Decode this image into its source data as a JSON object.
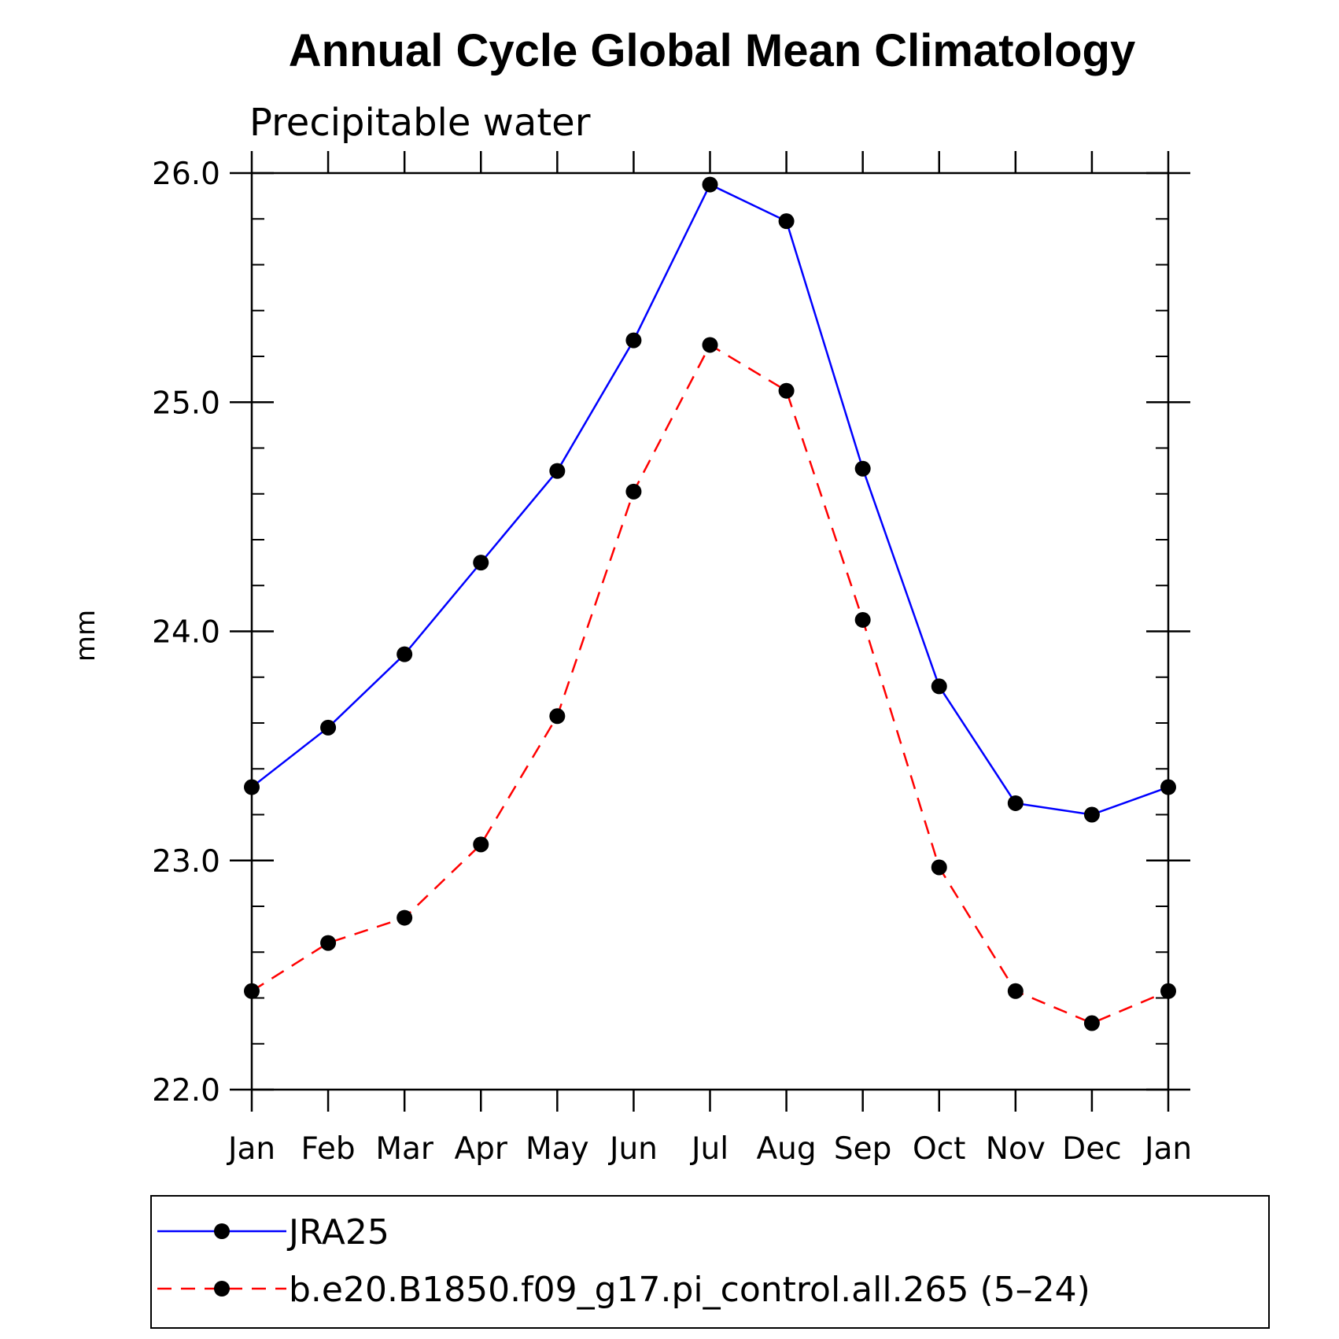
{
  "chart_data": {
    "type": "line",
    "title": "Annual Cycle Global Mean Climatology",
    "subtitle": "Precipitable water",
    "xlabel": "",
    "ylabel": "mm",
    "categories": [
      "Jan",
      "Feb",
      "Mar",
      "Apr",
      "May",
      "Jun",
      "Jul",
      "Aug",
      "Sep",
      "Oct",
      "Nov",
      "Dec",
      "Jan"
    ],
    "ylim": [
      22.0,
      26.0
    ],
    "yticks": [
      "22.0",
      "23.0",
      "24.0",
      "25.0",
      "26.0"
    ],
    "grid": false,
    "legend_position": "bottom",
    "series": [
      {
        "name": "JRA25",
        "color": "#0000ff",
        "dash": "solid",
        "marker": "filled-circle",
        "values": [
          23.32,
          23.58,
          23.9,
          24.3,
          24.7,
          25.27,
          25.95,
          25.79,
          24.71,
          23.76,
          23.25,
          23.2,
          23.32
        ]
      },
      {
        "name": "b.e20.B1850.f09_g17.pi_control.all.265 (5–24)",
        "color": "#ff0000",
        "dash": "dashed",
        "marker": "filled-circle",
        "values": [
          22.43,
          22.64,
          22.75,
          23.07,
          23.63,
          24.61,
          25.25,
          25.05,
          24.05,
          22.97,
          22.43,
          22.29,
          22.43
        ]
      }
    ]
  }
}
